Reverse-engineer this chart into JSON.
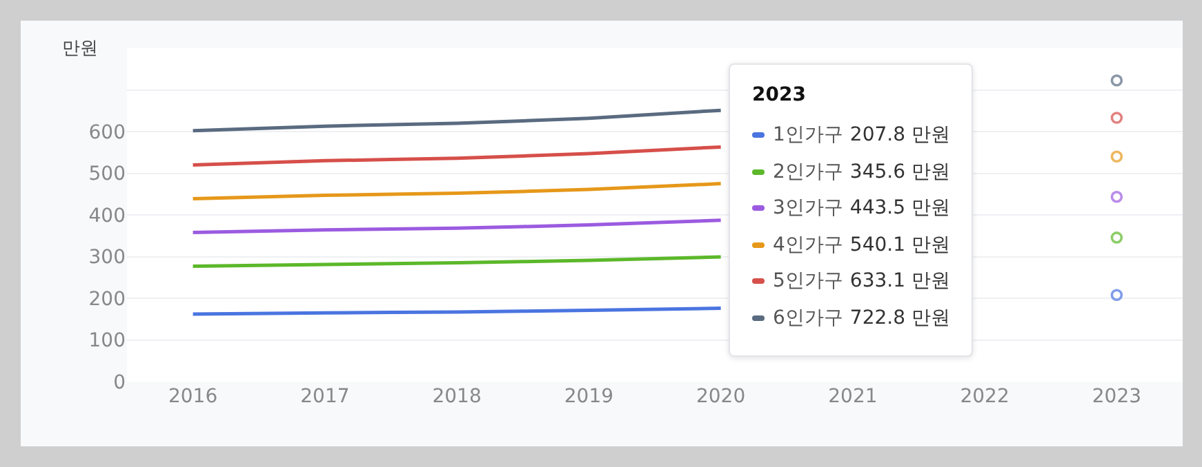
{
  "chart_data": {
    "type": "line",
    "ylabel": "만원",
    "legend_title": "2023",
    "legend": "right",
    "grid": "y",
    "annotations": [
      "207.8 만원",
      "345.6 만원",
      "443.5 만원",
      "540.1 만원",
      "633.1 만원",
      "722.8 만원"
    ],
    "categories": [
      "2016",
      "2017",
      "2018",
      "2019",
      "2020",
      "2021",
      "2022",
      "2023"
    ],
    "ylim": [
      0,
      800
    ],
    "yticks": [
      0,
      100,
      200,
      300,
      400,
      500,
      600,
      {
        "value": 700,
        "label": null
      },
      {
        "value": 800,
        "label": null
      }
    ],
    "series": [
      {
        "name": "1인가구",
        "color": "#4a74e0",
        "values": [
          162,
          165,
          167,
          171,
          176,
          null,
          null,
          207.8
        ]
      },
      {
        "name": "2인가구",
        "color": "#5cb82a",
        "values": [
          277,
          281,
          285,
          291,
          299,
          null,
          null,
          345.6
        ]
      },
      {
        "name": "3인가구",
        "color": "#9b5be0",
        "values": [
          358,
          364,
          368,
          376,
          387,
          null,
          null,
          443.5
        ]
      },
      {
        "name": "4인가구",
        "color": "#e6981a",
        "values": [
          439,
          447,
          452,
          461,
          475,
          null,
          null,
          540.1
        ]
      },
      {
        "name": "5인가구",
        "color": "#d64f4a",
        "values": [
          520,
          530,
          536,
          547,
          563,
          null,
          null,
          633.1
        ]
      },
      {
        "name": "6인가구",
        "color": "#5a6b80",
        "values": [
          602,
          613,
          620,
          632,
          651,
          null,
          null,
          722.8
        ]
      }
    ]
  }
}
